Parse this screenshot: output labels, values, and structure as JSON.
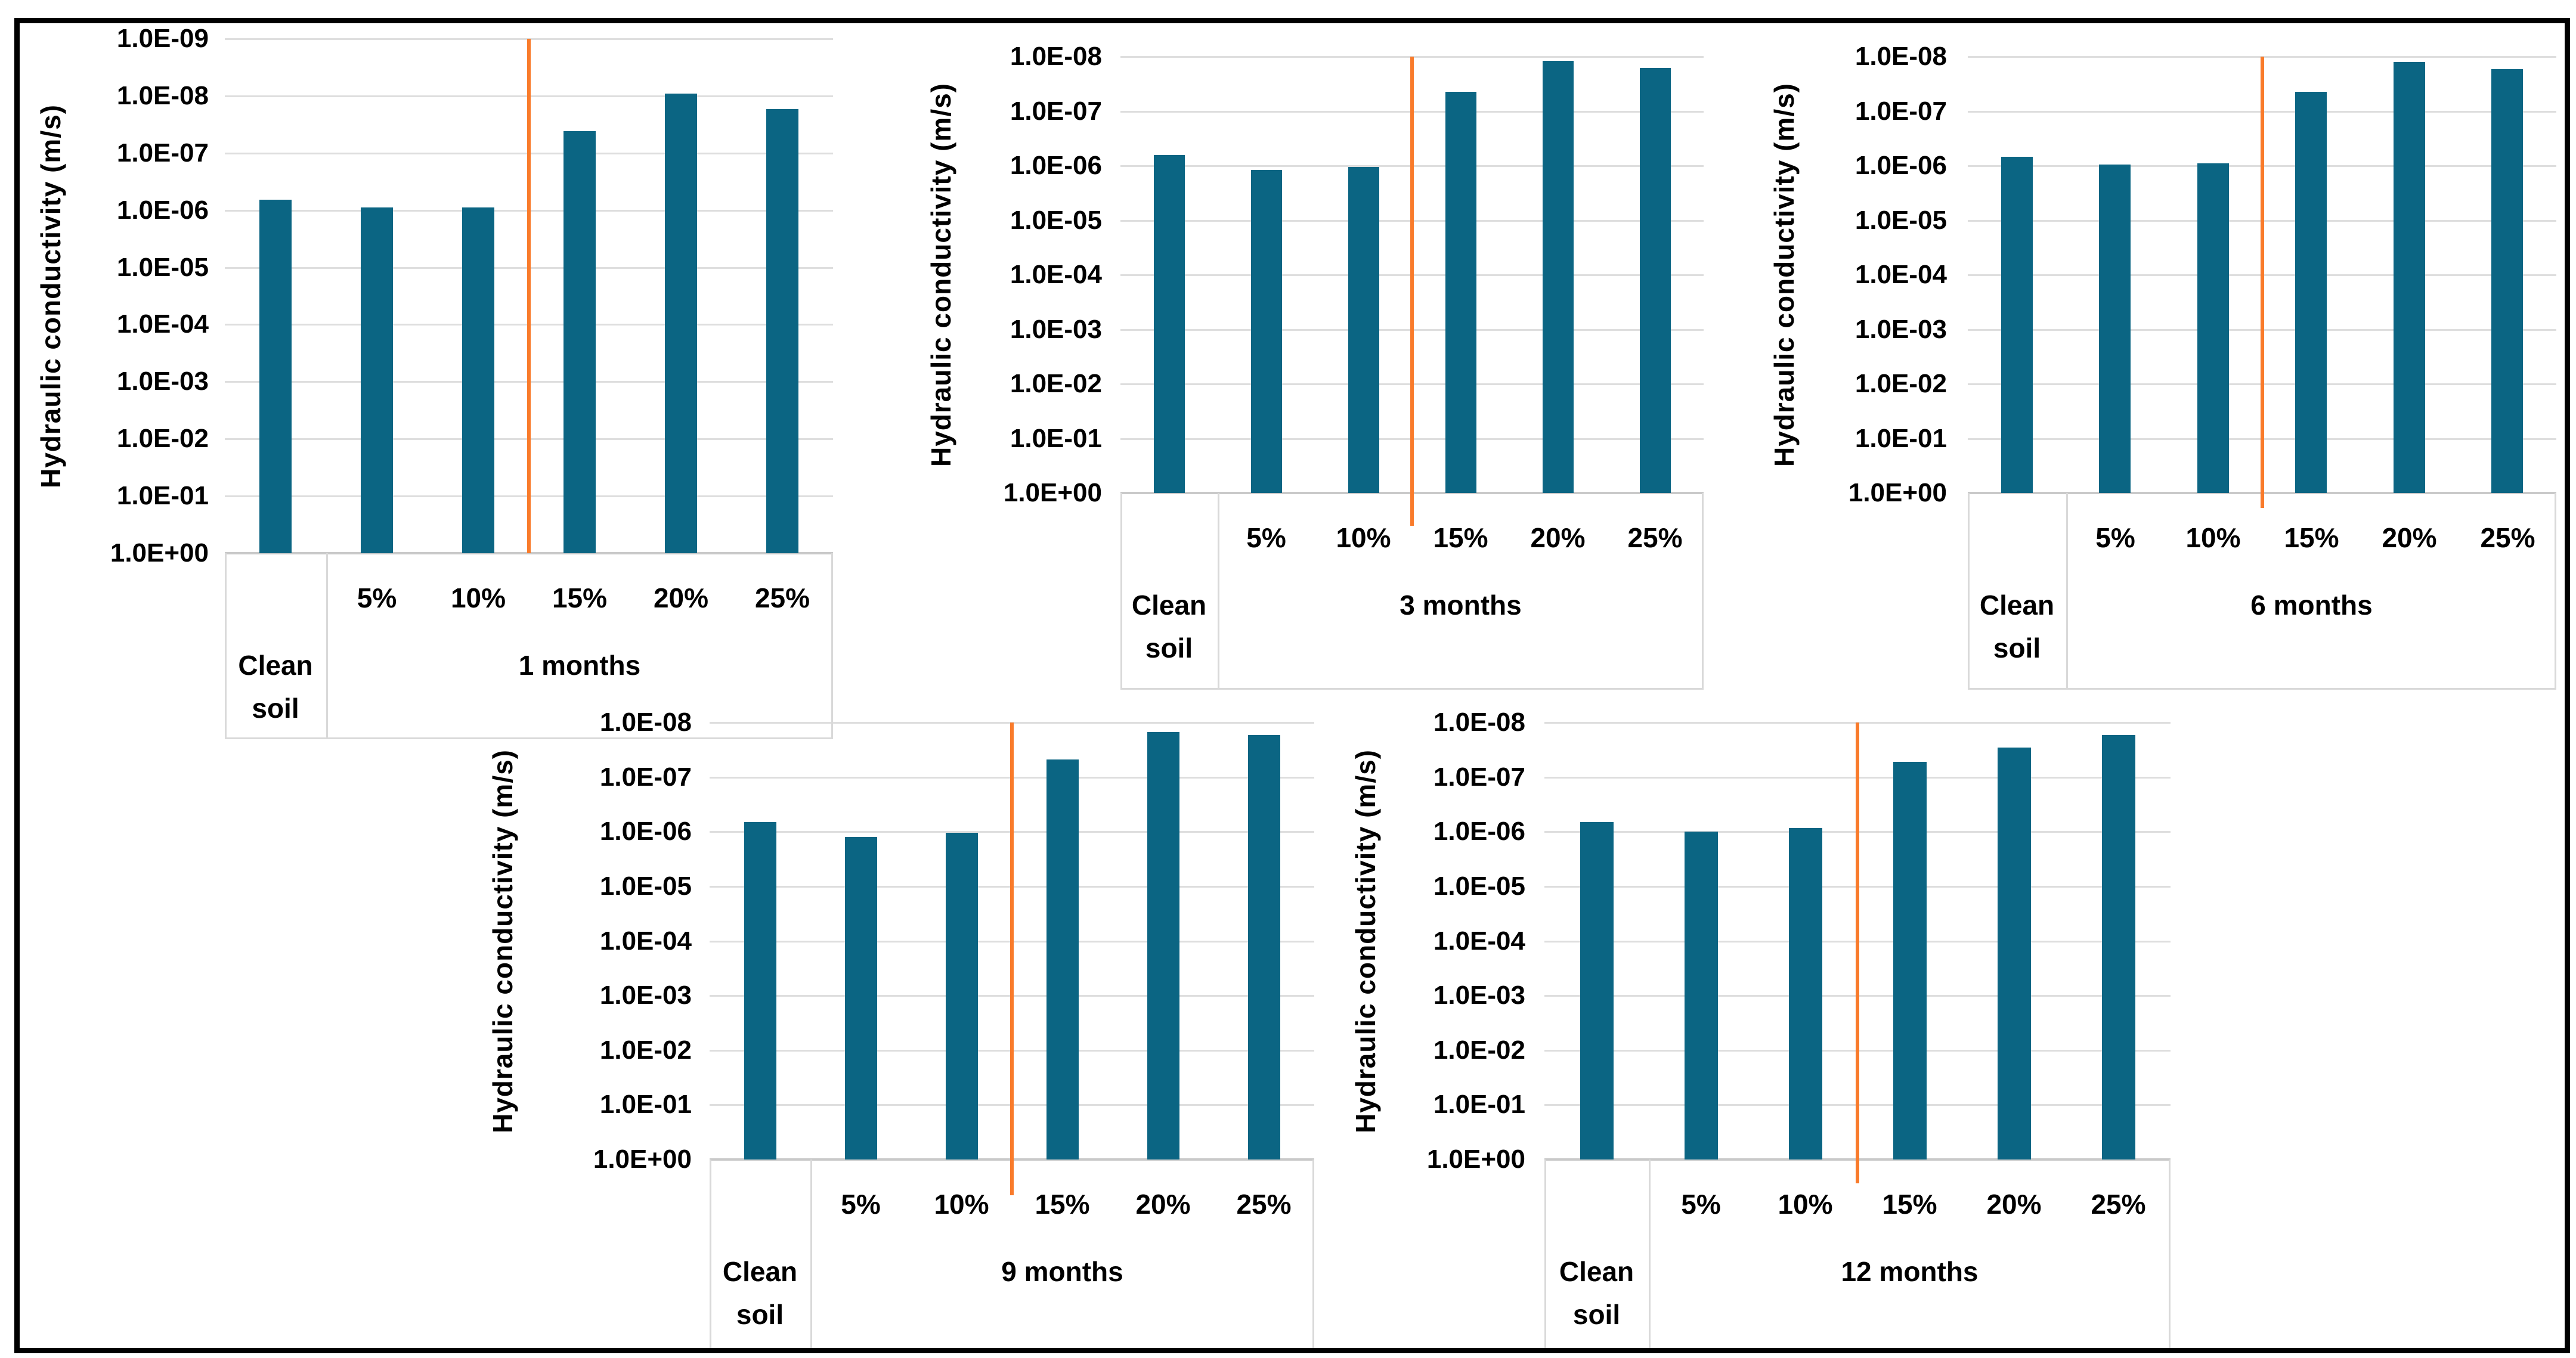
{
  "figure": {
    "background_color": "#ffffff",
    "border_color": "#000000",
    "bar_color": "#0b6583",
    "divider_line_color": "#f97b2b",
    "gridline_color": "#dedede",
    "axis_line_color": "#c9c9c9",
    "table_border_color": "#d9d9d9",
    "text_color": "#000000"
  },
  "chart_data": [
    {
      "type": "bar",
      "name": "1-months",
      "ylabel": "Hydraulic conductivity (m/s)",
      "y_scale": "log-inverted",
      "ylim": [
        1.0,
        1e-09
      ],
      "grid": true,
      "legend": "none",
      "y_ticks": [
        "1.0E-09",
        "1.0E-08",
        "1.0E-07",
        "1.0E-06",
        "1.0E-05",
        "1.0E-04",
        "1.0E-03",
        "1.0E-02",
        "1.0E-01",
        "1.0E+00"
      ],
      "category_groups": [
        {
          "label": "Clean soil",
          "span": 1
        },
        {
          "label": "1 months",
          "span": 5
        }
      ],
      "divider_between": [
        "10%",
        "15%"
      ],
      "bars": [
        {
          "category": "Clean soil",
          "value": 6.6e-07
        },
        {
          "category": "5%",
          "value": 9e-07
        },
        {
          "category": "10%",
          "value": 9e-07
        },
        {
          "category": "15%",
          "value": 4.1e-08
        },
        {
          "category": "20%",
          "value": 9.2e-09
        },
        {
          "category": "25%",
          "value": 1.7e-08
        }
      ]
    },
    {
      "type": "bar",
      "name": "3-months",
      "ylabel": "Hydraulic conductivity (m/s)",
      "y_scale": "log-inverted",
      "ylim": [
        1.0,
        1e-08
      ],
      "grid": true,
      "legend": "none",
      "y_ticks": [
        "1.0E-08",
        "1.0E-07",
        "1.0E-06",
        "1.0E-05",
        "1.0E-04",
        "1.0E-03",
        "1.0E-02",
        "1.0E-01",
        "1.0E+00"
      ],
      "category_groups": [
        {
          "label": "Clean soil",
          "span": 1
        },
        {
          "label": "3 months",
          "span": 5
        }
      ],
      "divider_between": [
        "10%",
        "15%"
      ],
      "bars": [
        {
          "category": "Clean soil",
          "value": 6.4e-07
        },
        {
          "category": "5%",
          "value": 1.2e-06
        },
        {
          "category": "10%",
          "value": 1.05e-06
        },
        {
          "category": "15%",
          "value": 4.4e-08
        },
        {
          "category": "20%",
          "value": 1.2e-08
        },
        {
          "category": "25%",
          "value": 1.6e-08
        }
      ]
    },
    {
      "type": "bar",
      "name": "6-months",
      "ylabel": "Hydraulic conductivity (m/s)",
      "y_scale": "log-inverted",
      "ylim": [
        1.0,
        1e-08
      ],
      "grid": true,
      "legend": "none",
      "y_ticks": [
        "1.0E-08",
        "1.0E-07",
        "1.0E-06",
        "1.0E-05",
        "1.0E-04",
        "1.0E-03",
        "1.0E-02",
        "1.0E-01",
        "1.0E+00"
      ],
      "category_groups": [
        {
          "label": "Clean soil",
          "span": 1
        },
        {
          "label": "6 months",
          "span": 5
        }
      ],
      "divider_between": [
        "10%",
        "15%"
      ],
      "bars": [
        {
          "category": "Clean soil",
          "value": 6.8e-07
        },
        {
          "category": "5%",
          "value": 9.5e-07
        },
        {
          "category": "10%",
          "value": 9e-07
        },
        {
          "category": "15%",
          "value": 4.4e-08
        },
        {
          "category": "20%",
          "value": 1.25e-08
        },
        {
          "category": "25%",
          "value": 1.7e-08
        }
      ]
    },
    {
      "type": "bar",
      "name": "9-months",
      "ylabel": "Hydraulic conductivity (m/s)",
      "y_scale": "log-inverted",
      "ylim": [
        1.0,
        1e-08
      ],
      "grid": true,
      "legend": "none",
      "y_ticks": [
        "1.0E-08",
        "1.0E-07",
        "1.0E-06",
        "1.0E-05",
        "1.0E-04",
        "1.0E-03",
        "1.0E-02",
        "1.0E-01",
        "1.0E+00"
      ],
      "category_groups": [
        {
          "label": "Clean soil",
          "span": 1
        },
        {
          "label": "9 months",
          "span": 5
        }
      ],
      "divider_between": [
        "10%",
        "15%"
      ],
      "bars": [
        {
          "category": "Clean soil",
          "value": 6.6e-07
        },
        {
          "category": "5%",
          "value": 1.25e-06
        },
        {
          "category": "10%",
          "value": 1.05e-06
        },
        {
          "category": "15%",
          "value": 4.8e-08
        },
        {
          "category": "20%",
          "value": 1.5e-08
        },
        {
          "category": "25%",
          "value": 1.7e-08
        }
      ]
    },
    {
      "type": "bar",
      "name": "12-months",
      "ylabel": "Hydraulic conductivity (m/s)",
      "y_scale": "log-inverted",
      "ylim": [
        1.0,
        1e-08
      ],
      "grid": true,
      "legend": "none",
      "y_ticks": [
        "1.0E-08",
        "1.0E-07",
        "1.0E-06",
        "1.0E-05",
        "1.0E-04",
        "1.0E-03",
        "1.0E-02",
        "1.0E-01",
        "1.0E+00"
      ],
      "category_groups": [
        {
          "label": "Clean soil",
          "span": 1
        },
        {
          "label": "12 months",
          "span": 5
        }
      ],
      "divider_between": [
        "10%",
        "15%"
      ],
      "bars": [
        {
          "category": "Clean soil",
          "value": 6.6e-07
        },
        {
          "category": "5%",
          "value": 1e-06
        },
        {
          "category": "10%",
          "value": 8.5e-07
        },
        {
          "category": "15%",
          "value": 5.2e-08
        },
        {
          "category": "20%",
          "value": 2.9e-08
        },
        {
          "category": "25%",
          "value": 1.7e-08
        }
      ]
    }
  ]
}
